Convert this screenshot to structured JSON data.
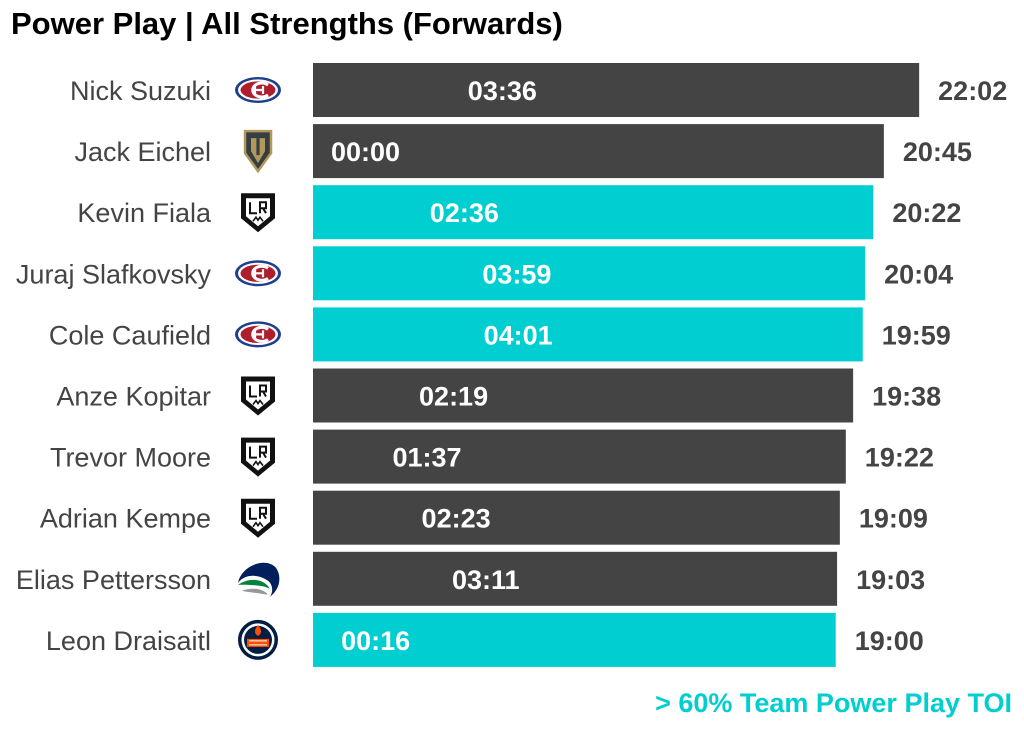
{
  "chart_data": {
    "type": "bar",
    "orientation": "horizontal",
    "title": "Power Play | All Strengths (Forwards)",
    "xlabel": "",
    "ylabel": "",
    "grid": false,
    "legend": "bottom-right",
    "legend_text": "> 60% Team Power Play TOI",
    "colors": {
      "default": "#444444",
      "highlight": "#00CED1",
      "value_text": "#444444",
      "inner_text": "#ffffff"
    },
    "xlim": [
      0,
      22.1
    ],
    "categories": [
      "Nick Suzuki",
      "Jack Eichel",
      "Kevin Fiala",
      "Juraj Slafkovsky",
      "Cole Caufield",
      "Anze Kopitar",
      "Trevor Moore",
      "Adrian Kempe",
      "Elias Pettersson",
      "Leon Draisaitl"
    ],
    "teams": [
      "MTL",
      "VGK",
      "LAK",
      "MTL",
      "MTL",
      "LAK",
      "LAK",
      "LAK",
      "VAN",
      "EDM"
    ],
    "team_icons": [
      "habs-logo-icon",
      "golden-knights-logo-icon",
      "kings-logo-icon",
      "habs-logo-icon",
      "habs-logo-icon",
      "kings-logo-icon",
      "kings-logo-icon",
      "kings-logo-icon",
      "canucks-logo-icon",
      "oilers-logo-icon"
    ],
    "values": [
      22.033,
      20.75,
      20.367,
      20.067,
      19.983,
      19.633,
      19.367,
      19.15,
      19.05,
      19.0
    ],
    "value_labels": [
      "22:02",
      "20:45",
      "20:22",
      "20:04",
      "19:59",
      "19:38",
      "19:22",
      "19:09",
      "19:03",
      "19:00"
    ],
    "pp_values": [
      3.6,
      0.0,
      2.6,
      3.983,
      4.017,
      2.317,
      1.617,
      2.383,
      3.183,
      0.267
    ],
    "pp_labels": [
      "03:36",
      "00:00",
      "02:36",
      "03:59",
      "04:01",
      "02:19",
      "01:37",
      "02:23",
      "03:11",
      "00:16"
    ],
    "highlighted": [
      false,
      false,
      true,
      true,
      true,
      false,
      false,
      false,
      false,
      true
    ]
  }
}
